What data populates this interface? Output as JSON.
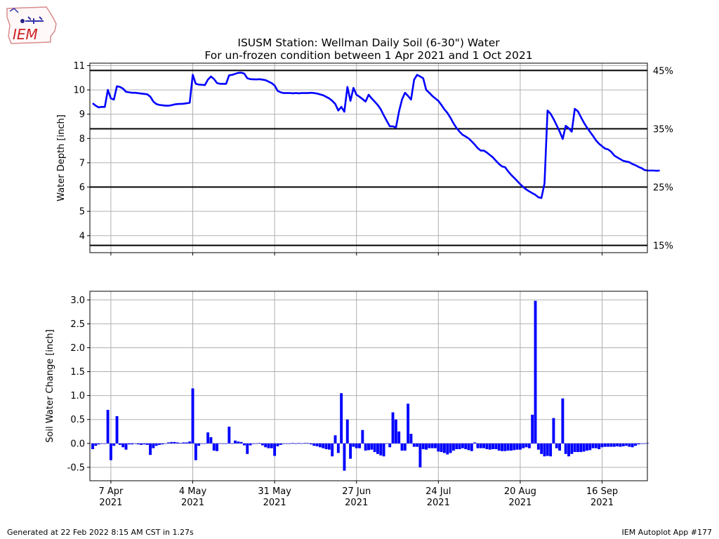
{
  "title_line1": "ISUSM Station: Wellman Daily Soil (6-30\") Water",
  "title_line2": "For un-frozen condition between 1 Apr 2021 and 1 Oct 2021",
  "logo_text": "IEM",
  "footer_left": "Generated at 22 Feb 2022 8:15 AM CST in 1.27s",
  "footer_right": "IEM Autoplot App #177",
  "colors": {
    "series": "#0000ff",
    "grid": "#b0b0b0",
    "ref_line": "#000000"
  },
  "chart_data": [
    {
      "type": "line",
      "ylabel": "Water Depth [inch]",
      "ylim": [
        3.3,
        11.1
      ],
      "yticks": [
        4,
        5,
        6,
        7,
        8,
        9,
        10,
        11
      ],
      "xlim_day": [
        0,
        183
      ],
      "grid": true,
      "reference_lines": [
        {
          "y": 10.8,
          "label": "45%"
        },
        {
          "y": 8.4,
          "label": "35%"
        },
        {
          "y": 6.0,
          "label": "25%"
        },
        {
          "y": 3.6,
          "label": "15%"
        }
      ],
      "series": [
        {
          "points": [
            [
              0,
              9.45
            ],
            [
              1,
              9.35
            ],
            [
              2,
              9.28
            ],
            [
              3,
              9.3
            ],
            [
              4,
              9.3
            ],
            [
              5,
              10.0
            ],
            [
              6,
              9.65
            ],
            [
              7,
              9.6
            ],
            [
              8,
              10.15
            ],
            [
              9,
              10.12
            ],
            [
              10,
              10.05
            ],
            [
              11,
              9.92
            ],
            [
              12,
              9.9
            ],
            [
              13,
              9.88
            ],
            [
              14,
              9.88
            ],
            [
              16,
              9.85
            ],
            [
              18,
              9.82
            ],
            [
              19,
              9.72
            ],
            [
              20,
              9.52
            ],
            [
              21,
              9.42
            ],
            [
              22,
              9.38
            ],
            [
              24,
              9.35
            ],
            [
              25,
              9.35
            ],
            [
              26,
              9.37
            ],
            [
              27,
              9.4
            ],
            [
              28,
              9.42
            ],
            [
              30,
              9.43
            ],
            [
              32,
              9.47
            ],
            [
              33,
              10.62
            ],
            [
              34,
              10.25
            ],
            [
              35,
              10.22
            ],
            [
              37,
              10.2
            ],
            [
              38,
              10.42
            ],
            [
              39,
              10.55
            ],
            [
              40,
              10.45
            ],
            [
              41,
              10.28
            ],
            [
              42,
              10.25
            ],
            [
              44,
              10.25
            ],
            [
              45,
              10.6
            ],
            [
              46,
              10.62
            ],
            [
              47,
              10.66
            ],
            [
              48,
              10.7
            ],
            [
              49,
              10.71
            ],
            [
              50,
              10.67
            ],
            [
              51,
              10.48
            ],
            [
              52,
              10.44
            ],
            [
              54,
              10.43
            ],
            [
              55,
              10.44
            ],
            [
              57,
              10.4
            ],
            [
              59,
              10.28
            ],
            [
              60,
              10.18
            ],
            [
              61,
              9.96
            ],
            [
              62,
              9.9
            ],
            [
              63,
              9.87
            ],
            [
              65,
              9.87
            ],
            [
              66,
              9.86
            ],
            [
              67,
              9.87
            ],
            [
              68,
              9.86
            ],
            [
              69,
              9.87
            ],
            [
              71,
              9.87
            ],
            [
              72,
              9.88
            ],
            [
              73,
              9.87
            ],
            [
              74,
              9.85
            ],
            [
              76,
              9.78
            ],
            [
              78,
              9.65
            ],
            [
              79,
              9.55
            ],
            [
              80,
              9.42
            ],
            [
              81,
              9.15
            ],
            [
              82,
              9.3
            ],
            [
              83,
              9.1
            ],
            [
              84,
              10.12
            ],
            [
              85,
              9.55
            ],
            [
              86,
              10.08
            ],
            [
              87,
              9.8
            ],
            [
              88,
              9.72
            ],
            [
              89,
              9.62
            ],
            [
              90,
              9.52
            ],
            [
              91,
              9.8
            ],
            [
              92,
              9.65
            ],
            [
              93,
              9.52
            ],
            [
              94,
              9.38
            ],
            [
              95,
              9.2
            ],
            [
              96,
              8.95
            ],
            [
              97,
              8.72
            ],
            [
              98,
              8.5
            ],
            [
              99,
              8.5
            ],
            [
              100,
              8.45
            ],
            [
              101,
              9.1
            ],
            [
              102,
              9.6
            ],
            [
              103,
              9.88
            ],
            [
              104,
              9.75
            ],
            [
              105,
              9.6
            ],
            [
              106,
              10.42
            ],
            [
              107,
              10.62
            ],
            [
              108,
              10.55
            ],
            [
              109,
              10.48
            ],
            [
              110,
              10.0
            ],
            [
              111,
              9.88
            ],
            [
              112,
              9.75
            ],
            [
              113,
              9.65
            ],
            [
              114,
              9.55
            ],
            [
              115,
              9.38
            ],
            [
              116,
              9.2
            ],
            [
              117,
              9.05
            ],
            [
              118,
              8.85
            ],
            [
              119,
              8.62
            ],
            [
              120,
              8.43
            ],
            [
              121,
              8.28
            ],
            [
              122,
              8.15
            ],
            [
              123,
              8.08
            ],
            [
              124,
              8.0
            ],
            [
              125,
              7.88
            ],
            [
              126,
              7.75
            ],
            [
              127,
              7.6
            ],
            [
              128,
              7.5
            ],
            [
              129,
              7.5
            ],
            [
              130,
              7.42
            ],
            [
              131,
              7.32
            ],
            [
              132,
              7.22
            ],
            [
              133,
              7.08
            ],
            [
              134,
              6.95
            ],
            [
              135,
              6.85
            ],
            [
              136,
              6.82
            ],
            [
              137,
              6.65
            ],
            [
              138,
              6.5
            ],
            [
              139,
              6.38
            ],
            [
              140,
              6.25
            ],
            [
              141,
              6.12
            ],
            [
              142,
              6.0
            ],
            [
              143,
              5.9
            ],
            [
              144,
              5.82
            ],
            [
              145,
              5.75
            ],
            [
              146,
              5.68
            ],
            [
              147,
              5.58
            ],
            [
              148,
              5.55
            ],
            [
              149,
              6.15
            ],
            [
              150,
              9.15
            ],
            [
              151,
              9.02
            ],
            [
              152,
              8.8
            ],
            [
              153,
              8.55
            ],
            [
              154,
              8.28
            ],
            [
              155,
              7.98
            ],
            [
              156,
              8.52
            ],
            [
              157,
              8.42
            ],
            [
              158,
              8.28
            ],
            [
              159,
              9.22
            ],
            [
              160,
              9.12
            ],
            [
              161,
              8.88
            ],
            [
              162,
              8.65
            ],
            [
              163,
              8.45
            ],
            [
              164,
              8.28
            ],
            [
              165,
              8.1
            ],
            [
              166,
              7.92
            ],
            [
              167,
              7.78
            ],
            [
              168,
              7.68
            ],
            [
              169,
              7.58
            ],
            [
              170,
              7.55
            ],
            [
              171,
              7.45
            ],
            [
              172,
              7.3
            ],
            [
              173,
              7.22
            ],
            [
              174,
              7.15
            ],
            [
              175,
              7.08
            ],
            [
              176,
              7.05
            ],
            [
              177,
              7.02
            ],
            [
              178,
              6.95
            ],
            [
              179,
              6.9
            ],
            [
              180,
              6.83
            ],
            [
              181,
              6.78
            ],
            [
              182,
              6.7
            ],
            [
              183,
              6.68
            ],
            [
              184,
              6.68
            ],
            [
              185,
              6.68
            ],
            [
              186,
              6.67
            ],
            [
              187,
              6.68
            ]
          ]
        }
      ]
    },
    {
      "type": "bar",
      "ylabel": "Soil Water Change [inch]",
      "ylim": [
        -0.78,
        3.18
      ],
      "yticks": [
        -0.5,
        0.0,
        0.5,
        1.0,
        1.5,
        2.0,
        2.5,
        3.0
      ],
      "xlim_day": [
        0,
        183
      ],
      "grid": true,
      "x_ticks": [
        {
          "day": 6,
          "label1": "7 Apr",
          "label2": "2021"
        },
        {
          "day": 33,
          "label1": "4 May",
          "label2": "2021"
        },
        {
          "day": 60,
          "label1": "31 May",
          "label2": "2021"
        },
        {
          "day": 87,
          "label1": "27 Jun",
          "label2": "2021"
        },
        {
          "day": 114,
          "label1": "24 Jul",
          "label2": "2021"
        },
        {
          "day": 141,
          "label1": "20 Aug",
          "label2": "2021"
        },
        {
          "day": 168,
          "label1": "16 Sep",
          "label2": "2021"
        }
      ],
      "values": [
        -0.12,
        -0.05,
        -0.02,
        0.0,
        0.0,
        0.7,
        -0.35,
        -0.05,
        0.57,
        -0.03,
        -0.08,
        -0.13,
        -0.02,
        -0.02,
        0.0,
        -0.02,
        -0.03,
        -0.02,
        -0.03,
        -0.24,
        -0.1,
        -0.05,
        -0.03,
        -0.02,
        0.0,
        0.02,
        0.03,
        0.03,
        0.02,
        0.01,
        0.02,
        0.02,
        0.04,
        1.15,
        -0.35,
        -0.05,
        0.0,
        0.0,
        0.23,
        0.13,
        -0.15,
        -0.16,
        0.0,
        0.0,
        -0.01,
        0.35,
        0.0,
        0.06,
        0.04,
        0.03,
        -0.04,
        -0.22,
        -0.04,
        -0.01,
        0.0,
        0.01,
        -0.04,
        -0.08,
        -0.1,
        -0.1,
        -0.26,
        -0.06,
        -0.03,
        -0.01,
        0.0,
        -0.01,
        0.01,
        -0.01,
        0.01,
        0.0,
        0.01,
        0.01,
        -0.02,
        -0.05,
        -0.06,
        -0.08,
        -0.1,
        -0.12,
        -0.13,
        -0.27,
        0.17,
        -0.2,
        1.05,
        -0.57,
        0.5,
        -0.32,
        -0.07,
        -0.1,
        -0.1,
        0.28,
        -0.15,
        -0.14,
        -0.13,
        -0.18,
        -0.22,
        -0.25,
        -0.27,
        0.0,
        -0.08,
        0.65,
        0.5,
        0.25,
        -0.15,
        -0.15,
        0.83,
        0.2,
        -0.07,
        -0.07,
        -0.5,
        -0.12,
        -0.13,
        -0.1,
        -0.1,
        -0.1,
        -0.17,
        -0.18,
        -0.2,
        -0.23,
        -0.2,
        -0.15,
        -0.12,
        -0.12,
        -0.1,
        -0.12,
        -0.14,
        -0.16,
        0.02,
        -0.1,
        -0.1,
        -0.1,
        -0.12,
        -0.13,
        -0.12,
        -0.12,
        -0.15,
        -0.16,
        -0.16,
        -0.15,
        -0.15,
        -0.14,
        -0.13,
        -0.13,
        -0.1,
        -0.08,
        -0.1,
        0.6,
        2.98,
        -0.13,
        -0.22,
        -0.27,
        -0.26,
        -0.27,
        0.53,
        -0.1,
        -0.15,
        0.94,
        -0.22,
        -0.27,
        -0.22,
        -0.18,
        -0.18,
        -0.18,
        -0.17,
        -0.15,
        -0.14,
        -0.1,
        -0.1,
        -0.12,
        -0.08,
        -0.07,
        -0.07,
        -0.07,
        -0.07,
        -0.06,
        -0.07,
        -0.06,
        -0.05,
        -0.07,
        -0.08,
        -0.05,
        -0.02,
        -0.01,
        0.0,
        0.01
      ]
    }
  ]
}
